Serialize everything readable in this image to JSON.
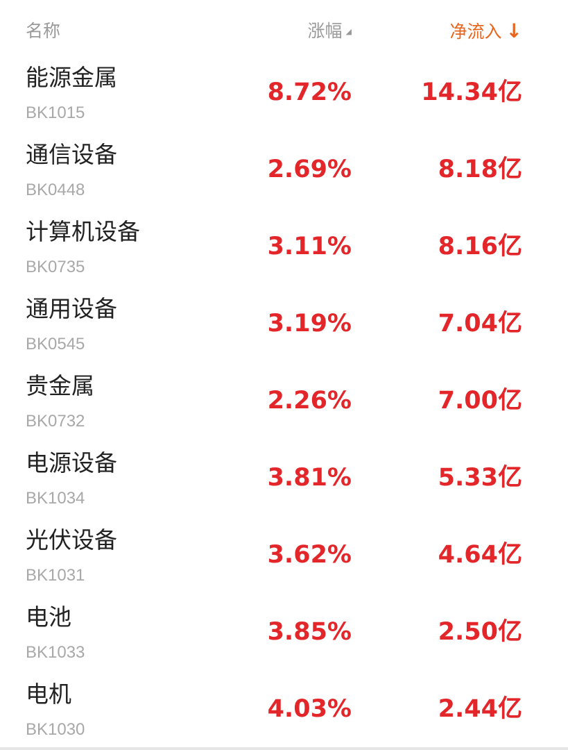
{
  "header": {
    "name_label": "名称",
    "pct_label": "涨幅",
    "pct_sort_icon": "triangle-sort-icon",
    "flow_label": "净流入",
    "flow_sort_icon": "arrow-down-icon",
    "flow_sort_glyph": "↓"
  },
  "colors": {
    "up": "#e3262a",
    "active_sort": "#e8651e",
    "muted": "#a8a8a8"
  },
  "rows": [
    {
      "name": "能源金属",
      "code": "BK1015",
      "pct": "8.72%",
      "flow": "14.34亿"
    },
    {
      "name": "通信设备",
      "code": "BK0448",
      "pct": "2.69%",
      "flow": "8.18亿"
    },
    {
      "name": "计算机设备",
      "code": "BK0735",
      "pct": "3.11%",
      "flow": "8.16亿"
    },
    {
      "name": "通用设备",
      "code": "BK0545",
      "pct": "3.19%",
      "flow": "7.04亿"
    },
    {
      "name": "贵金属",
      "code": "BK0732",
      "pct": "2.26%",
      "flow": "7.00亿"
    },
    {
      "name": "电源设备",
      "code": "BK1034",
      "pct": "3.81%",
      "flow": "5.33亿"
    },
    {
      "name": "光伏设备",
      "code": "BK1031",
      "pct": "3.62%",
      "flow": "4.64亿"
    },
    {
      "name": "电池",
      "code": "BK1033",
      "pct": "3.85%",
      "flow": "2.50亿"
    },
    {
      "name": "电机",
      "code": "BK1030",
      "pct": "4.03%",
      "flow": "2.44亿"
    }
  ]
}
